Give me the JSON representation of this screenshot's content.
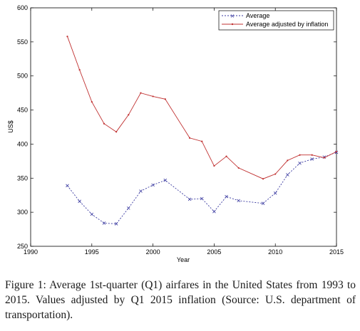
{
  "chart_data": {
    "type": "line",
    "xlabel": "Year",
    "ylabel": "US$",
    "xlim": [
      1990,
      2015
    ],
    "ylim": [
      250,
      600
    ],
    "xticks": [
      1990,
      1995,
      2000,
      2005,
      2010,
      2015
    ],
    "yticks": [
      250,
      300,
      350,
      400,
      450,
      500,
      550,
      600
    ],
    "grid": false,
    "legend_position": "top-right",
    "series": [
      {
        "name": "Average",
        "color": "#3a3aa0",
        "marker": "x",
        "line_style": "dashed",
        "x": [
          1993,
          1994,
          1995,
          1996,
          1997,
          1998,
          1999,
          2000,
          2001,
          2003,
          2004,
          2005,
          2006,
          2007,
          2009,
          2010,
          2011,
          2012,
          2013,
          2014,
          2015
        ],
        "y": [
          339,
          316,
          297,
          284,
          283,
          306,
          331,
          340,
          347,
          319,
          320,
          301,
          323,
          317,
          313,
          328,
          355,
          372,
          378,
          381,
          388
        ]
      },
      {
        "name": "Average adjusted by inflation",
        "color": "#c03030",
        "marker": "dot",
        "line_style": "solid",
        "x": [
          1993,
          1994,
          1995,
          1996,
          1997,
          1998,
          1999,
          2000,
          2001,
          2003,
          2004,
          2005,
          2006,
          2007,
          2009,
          2010,
          2011,
          2012,
          2013,
          2014,
          2015
        ],
        "y": [
          558,
          509,
          462,
          430,
          418,
          443,
          475,
          470,
          466,
          409,
          404,
          368,
          382,
          365,
          349,
          356,
          376,
          384,
          384,
          380,
          389
        ]
      }
    ]
  },
  "caption": {
    "label": "Figure 1:",
    "text": " Average 1st-quarter (Q1) airfares in the United States from 1993 to 2015. Values adjusted by Q1 2015 inflation (Source: U.S. department of transportation)."
  }
}
